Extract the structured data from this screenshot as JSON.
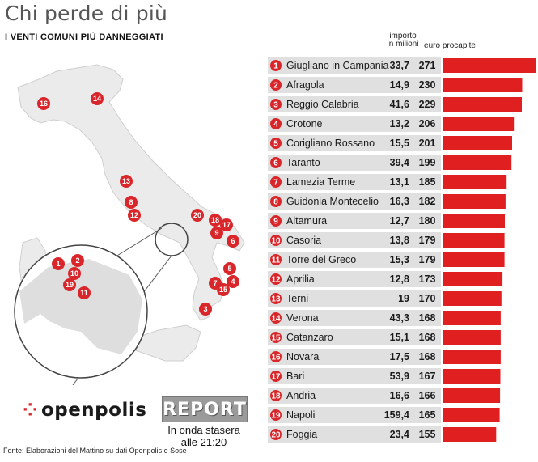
{
  "header": {
    "title": "Chi perde di più",
    "subtitle": "I VENTI COMUNI PIÙ DANNEGGIATI",
    "col_importo": "importo",
    "col_importo_unit": "in milioni",
    "col_euro": "euro procapite"
  },
  "chart_data": {
    "type": "bar",
    "orientation": "horizontal",
    "title": "Chi perde di più",
    "subtitle": "I VENTI COMUNI PIÙ DANNEGGIATI",
    "ranks": [
      "1",
      "2",
      "3",
      "4",
      "5",
      "6",
      "7",
      "8",
      "9",
      "10",
      "11",
      "12",
      "13",
      "14",
      "15",
      "16",
      "17",
      "18",
      "19",
      "20"
    ],
    "categories": [
      "Giugliano in Campania",
      "Afragola",
      "Reggio Calabria",
      "Crotone",
      "Corigliano Rossano",
      "Taranto",
      "Lamezia Terme",
      "Guidonia Montecelio",
      "Altamura",
      "Casoria",
      "Torre del Greco",
      "Aprilia",
      "Terni",
      "Verona",
      "Catanzaro",
      "Novara",
      "Bari",
      "Andria",
      "Napoli",
      "Foggia"
    ],
    "importo_label": [
      "33,7",
      "14,9",
      "41,6",
      "13,2",
      "15,5",
      "39,4",
      "13,1",
      "16,3",
      "12,7",
      "13,8",
      "15,3",
      "12,8",
      "19",
      "43,3",
      "15,1",
      "17,5",
      "53,9",
      "16,6",
      "159,4",
      "23,4"
    ],
    "importo_milioni": [
      33.7,
      14.9,
      41.6,
      13.2,
      15.5,
      39.4,
      13.1,
      16.3,
      12.7,
      13.8,
      15.3,
      12.8,
      19,
      43.3,
      15.1,
      17.5,
      53.9,
      16.6,
      159.4,
      23.4
    ],
    "values": [
      271,
      230,
      229,
      206,
      201,
      199,
      185,
      182,
      180,
      179,
      179,
      173,
      170,
      168,
      168,
      168,
      167,
      166,
      165,
      155
    ],
    "values_label": [
      "271",
      "230",
      "229",
      "206",
      "201",
      "199",
      "185",
      "182",
      "180",
      "179",
      "179",
      "173",
      "170",
      "168",
      "168",
      "168",
      "167",
      "166",
      "165",
      "155"
    ],
    "series_unit": "euro procapite",
    "xlim": [
      0,
      271
    ],
    "bar_color": "#e02020",
    "rank_color": "#d8262a"
  },
  "map": {
    "marker_color": "#d8262a",
    "land_color": "#ececec",
    "markers": [
      "16",
      "14",
      "13",
      "8",
      "12",
      "20",
      "18",
      "17",
      "9",
      "6",
      "5",
      "4",
      "7",
      "15",
      "3"
    ],
    "inset_markers": [
      "1",
      "2",
      "10",
      "19",
      "11"
    ]
  },
  "footer": {
    "brand": "openpolis",
    "brand_icon": "four-dots-icon",
    "report": "REPORT",
    "onda_line1": "In onda stasera",
    "onda_line2": "alle 21:20",
    "fonte": "Fonte: Elaborazioni del Mattino su dati Openpolis e Sose"
  }
}
